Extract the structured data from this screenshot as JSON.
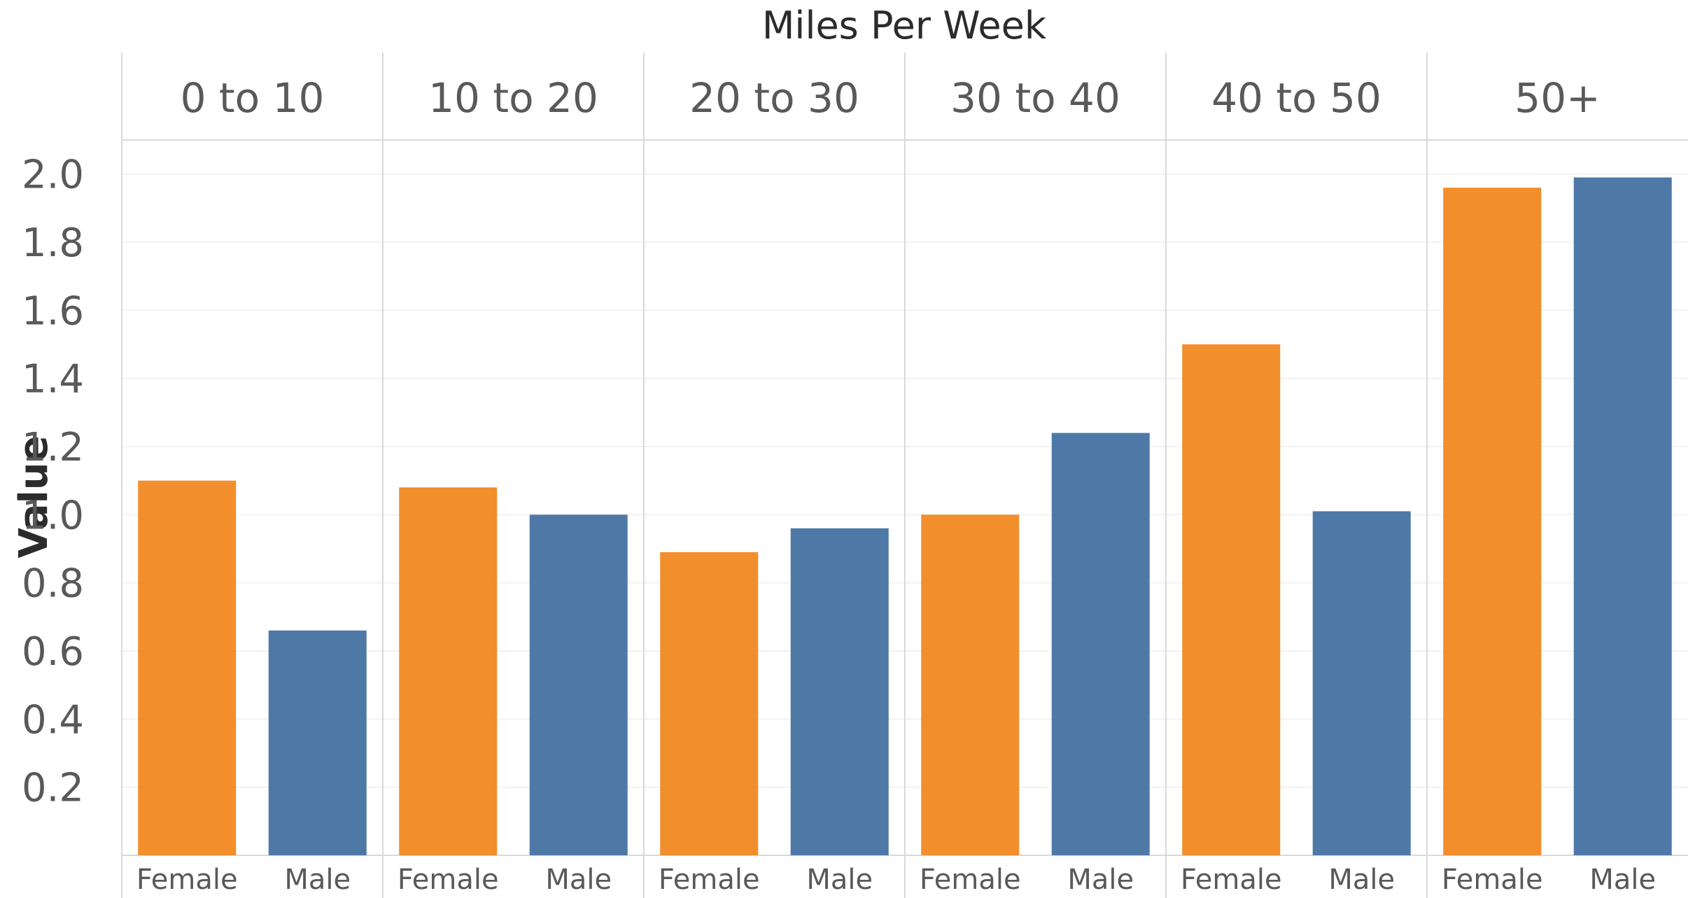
{
  "chart_data": {
    "type": "bar",
    "title": "Miles Per Week",
    "ylabel": "Value",
    "xlabel": "",
    "ylim": [
      0,
      2.1
    ],
    "yticks": [
      "0.2",
      "0.4",
      "0.6",
      "0.8",
      "1.0",
      "1.2",
      "1.4",
      "1.6",
      "1.8",
      "2.0"
    ],
    "categories": [
      "Female",
      "Male"
    ],
    "panels": [
      {
        "label": "0 to 10",
        "values": [
          1.1,
          0.66
        ]
      },
      {
        "label": "10 to 20",
        "values": [
          1.08,
          1.0
        ]
      },
      {
        "label": "20 to 30",
        "values": [
          0.89,
          0.96
        ]
      },
      {
        "label": "30 to 40",
        "values": [
          1.0,
          1.24
        ]
      },
      {
        "label": "40 to 50",
        "values": [
          1.5,
          1.01
        ]
      },
      {
        "label": "50+",
        "values": [
          1.96,
          1.99
        ]
      }
    ],
    "colors": {
      "Female": "#f28e2b",
      "Male": "#4e79a7"
    },
    "grid": true,
    "legend": "none"
  }
}
